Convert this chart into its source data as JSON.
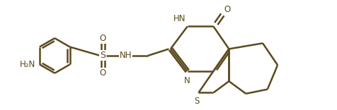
{
  "bg_color": "#ffffff",
  "line_color": "#5c4a1e",
  "line_width": 1.8,
  "font_size": 8.5,
  "figsize": [
    4.77,
    1.56
  ],
  "dpi": 100,
  "xlim": [
    0,
    10
  ],
  "ylim": [
    0,
    3.2
  ]
}
